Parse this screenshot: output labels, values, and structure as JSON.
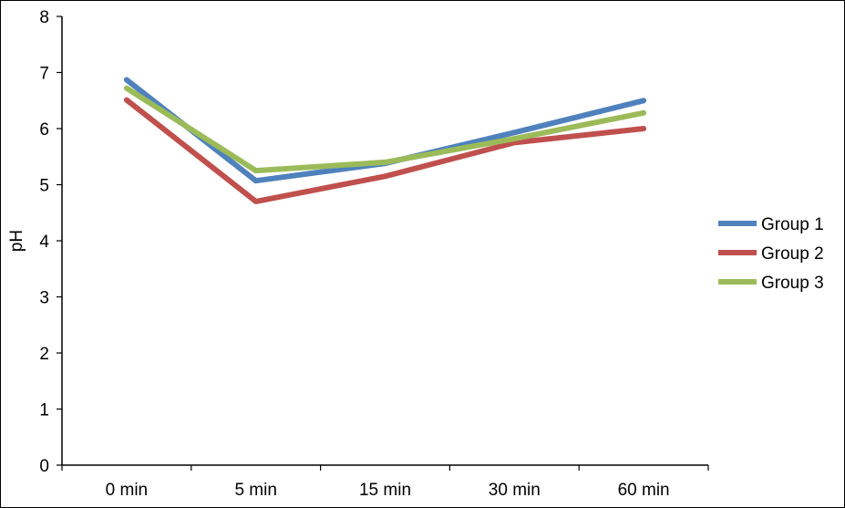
{
  "chart_data": {
    "type": "line",
    "title": "",
    "xlabel": "",
    "ylabel": "pH",
    "ylim": [
      0,
      8
    ],
    "y_ticks": [
      "0",
      "1",
      "2",
      "3",
      "4",
      "5",
      "6",
      "7",
      "8"
    ],
    "categories": [
      "0 min",
      "5 min",
      "15 min",
      "30 min",
      "60 min"
    ],
    "grid": false,
    "legend_position": "right",
    "series": [
      {
        "name": "Group 1",
        "color": "#4F81BD",
        "values": [
          6.87,
          5.07,
          5.38,
          5.93,
          6.5
        ]
      },
      {
        "name": "Group 2",
        "color": "#C0504D",
        "values": [
          6.51,
          4.7,
          5.15,
          5.75,
          6.0
        ]
      },
      {
        "name": "Group 3",
        "color": "#9BBB59",
        "values": [
          6.72,
          5.25,
          5.4,
          5.82,
          6.28
        ]
      }
    ]
  }
}
